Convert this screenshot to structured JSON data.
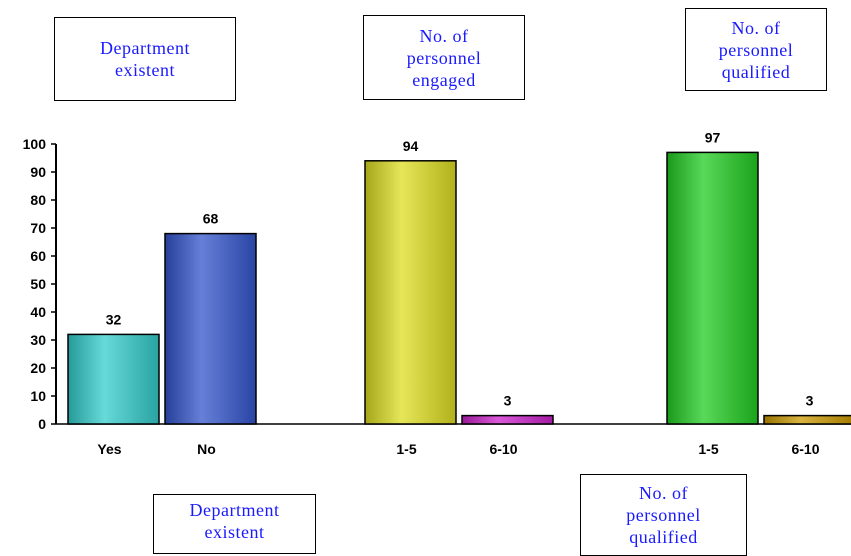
{
  "chart_data": {
    "type": "bar",
    "ylim": [
      0,
      100
    ],
    "yticks": [
      0,
      10,
      20,
      30,
      40,
      50,
      60,
      70,
      80,
      90,
      100
    ],
    "grid": false,
    "groups": [
      {
        "name": "Department existent",
        "bars": [
          {
            "label": "Yes",
            "value": 32,
            "color": "#33cccc"
          },
          {
            "label": "No",
            "value": 68,
            "color": "#3355cc"
          }
        ]
      },
      {
        "name": "No. of personnel engaged",
        "bars": [
          {
            "label": "1-5",
            "value": 94,
            "color": "#dddd22"
          },
          {
            "label": "6-10",
            "value": 3,
            "color": "#cc22cc"
          }
        ]
      },
      {
        "name": "No. of personnel qualified",
        "bars": [
          {
            "label": "1-5",
            "value": 97,
            "color": "#22cc22"
          },
          {
            "label": "6-10",
            "value": 3,
            "color": "#cc9900"
          }
        ]
      }
    ]
  },
  "annotations": {
    "top_1": "Department\nexistent",
    "top_2": "No. of\npersonnel\nengaged",
    "top_3": "No. of\npersonnel\nqualified",
    "bottom_1": "Department\nexistent",
    "bottom_2": "No. of\npersonnel\nqualified"
  }
}
